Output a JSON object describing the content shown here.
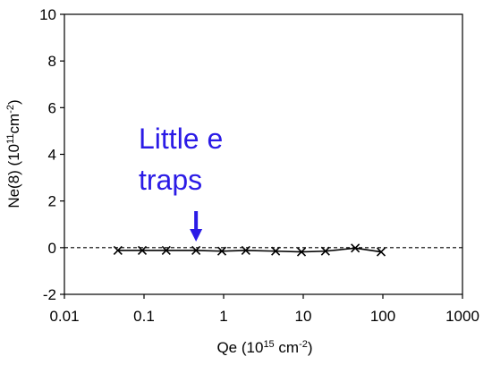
{
  "chart_data": {
    "type": "scatter",
    "xscale": "log",
    "xlim": [
      0.01,
      1000
    ],
    "ylim": [
      -2,
      10
    ],
    "xticks": [
      {
        "value": 0.01,
        "label": "0.01"
      },
      {
        "value": 0.1,
        "label": "0.1"
      },
      {
        "value": 1,
        "label": "1"
      },
      {
        "value": 10,
        "label": "10"
      },
      {
        "value": 100,
        "label": "100"
      },
      {
        "value": 1000,
        "label": "1000"
      }
    ],
    "yticks": [
      {
        "value": -2,
        "label": "-2"
      },
      {
        "value": 0,
        "label": "0"
      },
      {
        "value": 2,
        "label": "2"
      },
      {
        "value": 4,
        "label": "4"
      },
      {
        "value": 6,
        "label": "6"
      },
      {
        "value": 8,
        "label": "8"
      },
      {
        "value": 10,
        "label": "10"
      }
    ],
    "xlabel": {
      "base": "Qe (10",
      "sup1": "15",
      "mid": " cm",
      "sup2": "-2",
      "end": ")"
    },
    "ylabel": {
      "base": "Ne(8) (10",
      "sup1": "11",
      "mid": "cm",
      "sup2": "-2",
      "end": ")"
    },
    "series": [
      {
        "marker": "x",
        "color": "#000000",
        "x": [
          0.047,
          0.095,
          0.19,
          0.45,
          0.95,
          1.9,
          4.5,
          9.5,
          19,
          45,
          95
        ],
        "y": [
          -0.12,
          -0.12,
          -0.12,
          -0.12,
          -0.15,
          -0.12,
          -0.15,
          -0.18,
          -0.15,
          -0.02,
          -0.18
        ]
      }
    ],
    "reference_line": {
      "y": 0,
      "style": "dashed",
      "color": "#000000"
    },
    "annotation": {
      "line1": "Little e",
      "line2": "traps",
      "color": "#2b1be6",
      "arrow_x": 0.45
    },
    "grid": false
  }
}
